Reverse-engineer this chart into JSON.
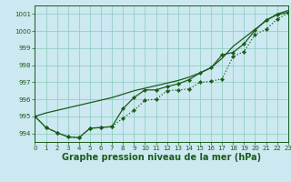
{
  "background_color": "#cce8f0",
  "grid_color": "#88ccbb",
  "line_color": "#1a5c1a",
  "ylim": [
    993.5,
    1001.5
  ],
  "xlim": [
    0,
    23
  ],
  "yticks": [
    994,
    995,
    996,
    997,
    998,
    999,
    1000,
    1001
  ],
  "xticks": [
    0,
    1,
    2,
    3,
    4,
    5,
    6,
    7,
    8,
    9,
    10,
    11,
    12,
    13,
    14,
    15,
    16,
    17,
    18,
    19,
    20,
    21,
    22,
    23
  ],
  "xlabel": "Graphe pression niveau de la mer (hPa)",
  "font_size_label": 7,
  "font_size_tick": 5,
  "line1_y": [
    995.0,
    994.35,
    994.05,
    993.8,
    993.75,
    994.3,
    994.35,
    994.4,
    994.9,
    995.35,
    995.95,
    996.0,
    996.5,
    996.55,
    996.6,
    997.0,
    997.05,
    997.2,
    998.5,
    998.8,
    999.8,
    1000.1,
    1000.7,
    1001.05
  ],
  "line2_y": [
    995.0,
    994.35,
    994.05,
    993.8,
    993.75,
    994.3,
    994.35,
    994.4,
    995.45,
    996.1,
    996.55,
    996.55,
    996.75,
    996.9,
    997.15,
    997.55,
    997.85,
    998.6,
    998.75,
    999.25,
    1000.05,
    1000.65,
    1000.95,
    1001.1
  ],
  "line3_y": [
    995.0,
    995.2,
    995.35,
    995.5,
    995.65,
    995.8,
    995.95,
    996.1,
    996.3,
    996.5,
    996.65,
    996.8,
    996.95,
    997.1,
    997.3,
    997.55,
    997.85,
    998.4,
    999.1,
    999.6,
    1000.1,
    1000.6,
    1001.0,
    1001.2
  ]
}
